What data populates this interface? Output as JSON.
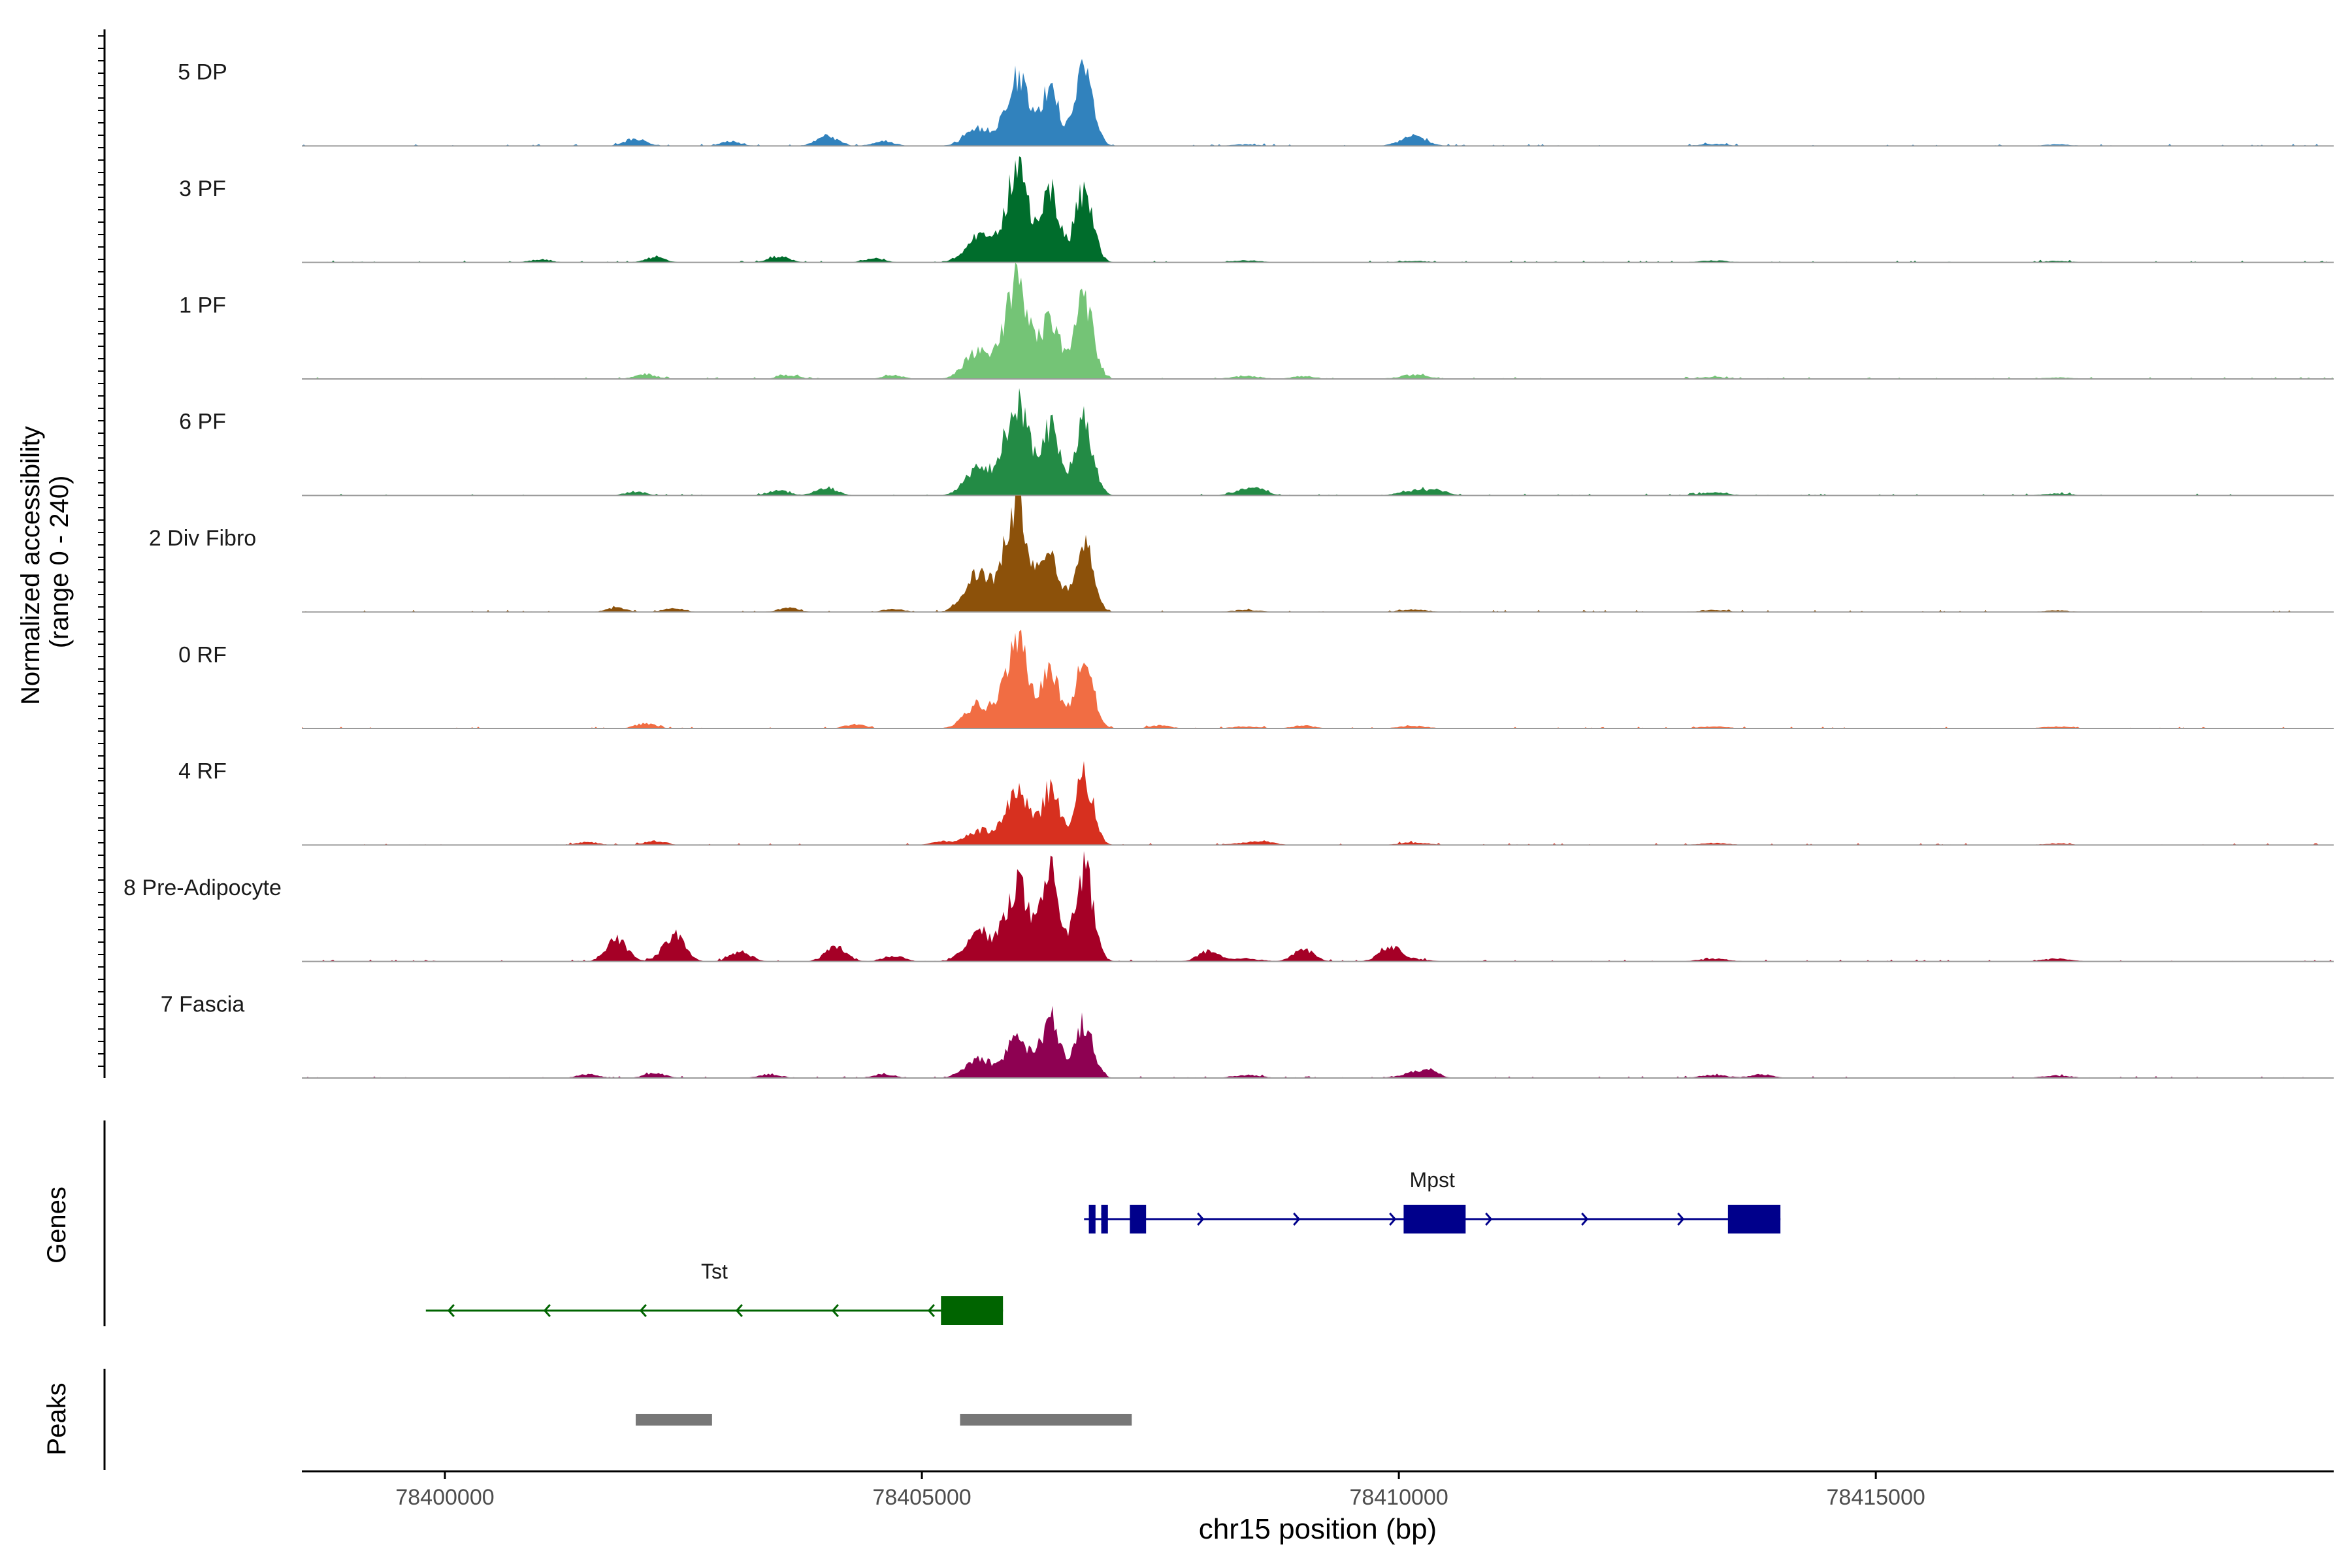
{
  "chart_data": {
    "type": "area",
    "title": "",
    "ylabel": "Normalized accessibility",
    "ylabel_sub": "(range 0 - 240)",
    "xlabel": "chr15 position (bp)",
    "xlim": [
      78398500,
      78419800
    ],
    "x_ticks": [
      78400000,
      78405000,
      78410000,
      78415000
    ],
    "x_tick_labels": [
      "78400000",
      "78405000",
      "78410000",
      "78415000"
    ],
    "y_range": [
      0,
      240
    ],
    "peak_centers": [
      78405600,
      78406000,
      78406350,
      78406700,
      78408400,
      78410150,
      78413300,
      78416900
    ],
    "series": [
      {
        "name": "5 DP",
        "color": "#3182BD",
        "peaks": [
          35,
          140,
          120,
          150,
          3,
          10,
          4,
          3
        ],
        "minor": [
          [
            78402000,
            15
          ],
          [
            78403000,
            9
          ],
          [
            78404000,
            22
          ],
          [
            78404600,
            10
          ],
          [
            78410150,
            10
          ]
        ]
      },
      {
        "name": "3 PF",
        "color": "#006D2C",
        "peaks": [
          55,
          190,
          140,
          150,
          4,
          3,
          4,
          3
        ],
        "minor": [
          [
            78401000,
            6
          ],
          [
            78402200,
            10
          ],
          [
            78403500,
            12
          ],
          [
            78404500,
            8
          ]
        ]
      },
      {
        "name": "1 PF",
        "color": "#74C476",
        "peaks": [
          60,
          200,
          130,
          170,
          6,
          8,
          4,
          3
        ],
        "minor": [
          [
            78402100,
            10
          ],
          [
            78403600,
            8
          ],
          [
            78404700,
            7
          ],
          [
            78409000,
            6
          ]
        ]
      },
      {
        "name": "6 PF",
        "color": "#238B45",
        "peaks": [
          60,
          200,
          140,
          150,
          8,
          9,
          6,
          4
        ],
        "minor": [
          [
            78402000,
            8
          ],
          [
            78403500,
            10
          ],
          [
            78404000,
            16
          ],
          [
            78408500,
            12
          ],
          [
            78410400,
            10
          ]
        ]
      },
      {
        "name": "2 Div Fibro",
        "color": "#8C510A",
        "peaks": [
          80,
          230,
          120,
          150,
          4,
          5,
          4,
          3
        ],
        "minor": [
          [
            78401800,
            8
          ],
          [
            78402400,
            8
          ],
          [
            78403600,
            8
          ],
          [
            78404700,
            6
          ]
        ]
      },
      {
        "name": "0 RF",
        "color": "#F16D43",
        "peaks": [
          50,
          180,
          120,
          140,
          4,
          5,
          4,
          4
        ],
        "minor": [
          [
            78402100,
            10
          ],
          [
            78404300,
            8
          ],
          [
            78407500,
            6
          ],
          [
            78409000,
            6
          ]
        ]
      },
      {
        "name": "4 RF",
        "color": "#D7301F",
        "peaks": [
          30,
          110,
          115,
          140,
          4,
          5,
          4,
          3
        ],
        "minor": [
          [
            78401500,
            6
          ],
          [
            78402200,
            8
          ],
          [
            78405200,
            6
          ],
          [
            78408600,
            6
          ]
        ]
      },
      {
        "name": "8 Pre-Adipocyte",
        "color": "#A50026",
        "peaks": [
          60,
          160,
          180,
          190,
          6,
          5,
          6,
          6
        ],
        "minor": [
          [
            78401800,
            45
          ],
          [
            78402400,
            55
          ],
          [
            78403100,
            20
          ],
          [
            78404100,
            30
          ],
          [
            78404700,
            12
          ],
          [
            78408000,
            20
          ],
          [
            78409000,
            25
          ],
          [
            78409900,
            30
          ]
        ]
      },
      {
        "name": "7 Fascia",
        "color": "#8E0152",
        "peaks": [
          40,
          85,
          130,
          115,
          6,
          8,
          6,
          5
        ],
        "minor": [
          [
            78401500,
            8
          ],
          [
            78402200,
            10
          ],
          [
            78403400,
            8
          ],
          [
            78404600,
            8
          ],
          [
            78410300,
            12
          ],
          [
            78413800,
            8
          ]
        ]
      }
    ],
    "genes": [
      {
        "name": "Mpst",
        "strand": "+",
        "start": 78406700,
        "end": 78414000,
        "color": "#00008B",
        "exons": [
          [
            78406750,
            78406820
          ],
          [
            78406880,
            78406950
          ],
          [
            78407180,
            78407350
          ],
          [
            78410050,
            78410700
          ],
          [
            78413450,
            78414000
          ]
        ]
      },
      {
        "name": "Tst",
        "strand": "-",
        "start": 78399800,
        "end": 78405850,
        "color": "#006400",
        "exons": [
          [
            78405200,
            78405850
          ]
        ]
      }
    ],
    "peaks_track": [
      [
        78402000,
        78402800
      ],
      [
        78405400,
        78407200
      ]
    ]
  },
  "axes": {
    "genes_label": "Genes",
    "peaks_label": "Peaks"
  }
}
